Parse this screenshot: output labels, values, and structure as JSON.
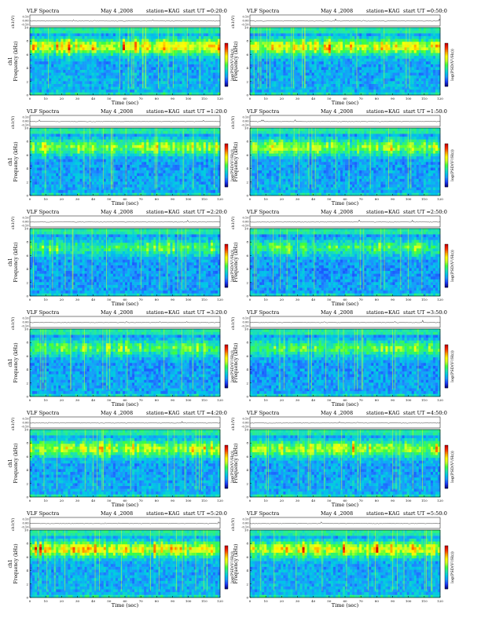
{
  "colors": {
    "colormap": [
      "#08088a",
      "#1a3cff",
      "#1e90ff",
      "#00c8e6",
      "#22e6aa",
      "#3cff3c",
      "#c8ff28",
      "#ffff00",
      "#ffa000",
      "#ff3000",
      "#c80000"
    ],
    "background": "#ffffff",
    "axis": "#000000"
  },
  "chart_data": [
    {
      "type": "heatmap",
      "title_left": "VLF Spectra",
      "title_date": "May 4 ,2008",
      "title_station": "station=KAG",
      "title_start": "start UT =0:20:0",
      "ch_label": "ch1(V)",
      "ch_ticks": [
        "0.10",
        "0.00",
        "-0.10"
      ],
      "ylabel": "Frequency (kHz)",
      "ylabel_ch": "ch1",
      "yticks": [
        "0",
        "2",
        "4",
        "6",
        "8",
        "10"
      ],
      "ylim": [
        0,
        10
      ],
      "xlabel": "Time (sec)",
      "xticks": [
        "0",
        "10",
        "20",
        "30",
        "40",
        "50",
        "60",
        "70",
        "80",
        "90",
        "100",
        "110",
        "120"
      ],
      "xlim": [
        0,
        120
      ],
      "colorbar_label": "log(PSD(V²/Hz))",
      "intensity": 1.0,
      "seed": 11
    },
    {
      "type": "heatmap",
      "title_left": "VLF Spectra",
      "title_date": "May 4 ,2008",
      "title_station": "station=KAG",
      "title_start": "start UT =0:50:0",
      "ch_label": "ch1(V)",
      "ch_ticks": [
        "0.10",
        "0.00",
        "-0.10"
      ],
      "ylabel": "Frequency (kHz)",
      "ylabel_ch": "",
      "yticks": [
        "0",
        "2",
        "4",
        "6",
        "8",
        "10"
      ],
      "ylim": [
        0,
        10
      ],
      "xlabel": "Time (sec)",
      "xticks": [
        "0",
        "10",
        "20",
        "30",
        "40",
        "50",
        "60",
        "70",
        "80",
        "90",
        "100",
        "110",
        "120"
      ],
      "xlim": [
        0,
        120
      ],
      "colorbar_label": "log(PSD(V²/Hz))",
      "intensity": 1.0,
      "seed": 23
    },
    {
      "type": "heatmap",
      "title_left": "VLF Spectra",
      "title_date": "May 4 ,2008",
      "title_station": "station=KAG",
      "title_start": "start UT =1:20:0",
      "ch_label": "ch1(V)",
      "ch_ticks": [
        "0.10",
        "0.00",
        "-0.10"
      ],
      "ylabel": "Frequency (kHz)",
      "ylabel_ch": "ch1",
      "yticks": [
        "0",
        "2",
        "4",
        "6",
        "8",
        "10"
      ],
      "ylim": [
        0,
        10
      ],
      "xlabel": "Time (sec)",
      "xticks": [
        "0",
        "10",
        "20",
        "30",
        "40",
        "50",
        "60",
        "70",
        "80",
        "90",
        "100",
        "110",
        "120"
      ],
      "xlim": [
        0,
        120
      ],
      "colorbar_label": "log(PSD(V²/Hz))",
      "intensity": 0.78,
      "seed": 37
    },
    {
      "type": "heatmap",
      "title_left": "VLF Spectra",
      "title_date": "May 4 ,2008",
      "title_station": "station=KAG",
      "title_start": "start UT =1:50:0",
      "ch_label": "ch1(V)",
      "ch_ticks": [
        "0.10",
        "0.00",
        "-0.10"
      ],
      "ylabel": "Frequency (kHz)",
      "ylabel_ch": "",
      "yticks": [
        "0",
        "2",
        "4",
        "6",
        "8",
        "10"
      ],
      "ylim": [
        0,
        10
      ],
      "xlabel": "Time (sec)",
      "xticks": [
        "0",
        "10",
        "20",
        "30",
        "40",
        "50",
        "60",
        "70",
        "80",
        "90",
        "100",
        "110",
        "120"
      ],
      "xlim": [
        0,
        120
      ],
      "colorbar_label": "log(PSD(V²/Hz))",
      "intensity": 0.78,
      "seed": 41
    },
    {
      "type": "heatmap",
      "title_left": "VLF Spectra",
      "title_date": "May 4 ,2008",
      "title_station": "station=KAG",
      "title_start": "start UT =2:20:0",
      "ch_label": "ch1(V)",
      "ch_ticks": [
        "0.10",
        "0.00",
        "-0.10"
      ],
      "ylabel": "Frequency (kHz)",
      "ylabel_ch": "ch1",
      "yticks": [
        "0",
        "2",
        "4",
        "6",
        "8",
        "10"
      ],
      "ylim": [
        0,
        10
      ],
      "xlabel": "Time (sec)",
      "xticks": [
        "0",
        "10",
        "20",
        "30",
        "40",
        "50",
        "60",
        "70",
        "80",
        "90",
        "100",
        "110",
        "120"
      ],
      "xlim": [
        0,
        120
      ],
      "colorbar_label": "log(PSD(V²/Hz))",
      "intensity": 0.55,
      "seed": 53
    },
    {
      "type": "heatmap",
      "title_left": "VLF Spectra",
      "title_date": "May 4 ,2008",
      "title_station": "station=KAG",
      "title_start": "start UT =2:50:0",
      "ch_label": "ch1(V)",
      "ch_ticks": [
        "0.10",
        "0.00",
        "-0.10"
      ],
      "ylabel": "Frequency (kHz)",
      "ylabel_ch": "",
      "yticks": [
        "0",
        "2",
        "4",
        "6",
        "8",
        "10"
      ],
      "ylim": [
        0,
        10
      ],
      "xlabel": "Time (sec)",
      "xticks": [
        "0",
        "10",
        "20",
        "30",
        "40",
        "50",
        "60",
        "70",
        "80",
        "90",
        "100",
        "110",
        "120"
      ],
      "xlim": [
        0,
        120
      ],
      "colorbar_label": "log(PSD(V²/Hz))",
      "intensity": 0.55,
      "seed": 67
    },
    {
      "type": "heatmap",
      "title_left": "VLF Spectra",
      "title_date": "May 4 ,2008",
      "title_station": "station=KAG",
      "title_start": "start UT =3:20:0",
      "ch_label": "ch1(V)",
      "ch_ticks": [
        "0.10",
        "0.00",
        "-0.10"
      ],
      "ylabel": "Frequency (kHz)",
      "ylabel_ch": "ch1",
      "yticks": [
        "0",
        "2",
        "4",
        "6",
        "8",
        "10"
      ],
      "ylim": [
        0,
        10
      ],
      "xlabel": "Time (sec)",
      "xticks": [
        "0",
        "10",
        "20",
        "30",
        "40",
        "50",
        "60",
        "70",
        "80",
        "90",
        "100",
        "110",
        "120"
      ],
      "xlim": [
        0,
        120
      ],
      "colorbar_label": "log(PSD(V²/Hz))",
      "intensity": 0.6,
      "seed": 71
    },
    {
      "type": "heatmap",
      "title_left": "VLF Spectra",
      "title_date": "May 4 ,2008",
      "title_station": "station=KAG",
      "title_start": "start UT =3:50:0",
      "ch_label": "ch1(V)",
      "ch_ticks": [
        "0.10",
        "0.00",
        "-0.10"
      ],
      "ylabel": "Frequency (kHz)",
      "ylabel_ch": "",
      "yticks": [
        "0",
        "2",
        "4",
        "6",
        "8",
        "10"
      ],
      "ylim": [
        0,
        10
      ],
      "xlabel": "Time (sec)",
      "xticks": [
        "0",
        "10",
        "20",
        "30",
        "40",
        "50",
        "60",
        "70",
        "80",
        "90",
        "100",
        "110",
        "120"
      ],
      "xlim": [
        0,
        120
      ],
      "colorbar_label": "log(PSD(V²/Hz))",
      "intensity": 0.6,
      "seed": 83
    },
    {
      "type": "heatmap",
      "title_left": "VLF Spectra",
      "title_date": "May 4 ,2008",
      "title_station": "station=KAG",
      "title_start": "start UT =4:20:0",
      "ch_label": "ch1(V)",
      "ch_ticks": [
        "0.10",
        "0.00",
        "-0.10"
      ],
      "ylabel": "Frequency (kHz)",
      "ylabel_ch": "ch1",
      "yticks": [
        "0",
        "2",
        "4",
        "6",
        "8",
        "10"
      ],
      "ylim": [
        0,
        10
      ],
      "xlabel": "Time (sec)",
      "xticks": [
        "0",
        "10",
        "20",
        "30",
        "40",
        "50",
        "60",
        "70",
        "80",
        "90",
        "100",
        "110",
        "120"
      ],
      "xlim": [
        0,
        120
      ],
      "colorbar_label": "log(PSD(V²/Hz))",
      "intensity": 0.82,
      "seed": 97
    },
    {
      "type": "heatmap",
      "title_left": "VLF Spectra",
      "title_date": "May 4 ,2008",
      "title_station": "station=KAG",
      "title_start": "start UT =4:50:0",
      "ch_label": "ch1(V)",
      "ch_ticks": [
        "0.10",
        "0.00",
        "-0.10"
      ],
      "ylabel": "Frequency (kHz)",
      "ylabel_ch": "",
      "yticks": [
        "0",
        "2",
        "4",
        "6",
        "8",
        "10"
      ],
      "ylim": [
        0,
        10
      ],
      "xlabel": "Time (sec)",
      "xticks": [
        "0",
        "10",
        "20",
        "30",
        "40",
        "50",
        "60",
        "70",
        "80",
        "90",
        "100",
        "110",
        "120"
      ],
      "xlim": [
        0,
        120
      ],
      "colorbar_label": "log(PSD(V²/Hz))",
      "intensity": 0.82,
      "seed": 101
    },
    {
      "type": "heatmap",
      "title_left": "VLF Spectra",
      "title_date": "May 4 ,2008",
      "title_station": "station=KAG",
      "title_start": "start UT =5:20:0",
      "ch_label": "ch1(V)",
      "ch_ticks": [
        "0.10",
        "0.00",
        "-0.10"
      ],
      "ylabel": "Frequency (kHz)",
      "ylabel_ch": "ch1",
      "yticks": [
        "0",
        "2",
        "4",
        "6",
        "8",
        "10"
      ],
      "ylim": [
        0,
        10
      ],
      "xlabel": "Time (sec)",
      "xticks": [
        "0",
        "10",
        "20",
        "30",
        "40",
        "50",
        "60",
        "70",
        "80",
        "90",
        "100",
        "110",
        "120"
      ],
      "xlim": [
        0,
        120
      ],
      "colorbar_label": "log(PSD(V²/Hz))",
      "intensity": 1.0,
      "seed": 113
    },
    {
      "type": "heatmap",
      "title_left": "VLF Spectra",
      "title_date": "May 4 ,2008",
      "title_station": "station=KAG",
      "title_start": "start UT =5:50:0",
      "ch_label": "ch1(V)",
      "ch_ticks": [
        "0.10",
        "0.00",
        "-0.10"
      ],
      "ylabel": "Frequency (kHz)",
      "ylabel_ch": "",
      "yticks": [
        "0",
        "2",
        "4",
        "6",
        "8",
        "10"
      ],
      "ylim": [
        0,
        10
      ],
      "xlabel": "Time (sec)",
      "xticks": [
        "0",
        "10",
        "20",
        "30",
        "40",
        "50",
        "60",
        "70",
        "80",
        "90",
        "100",
        "110",
        "120"
      ],
      "xlim": [
        0,
        120
      ],
      "colorbar_label": "log(PSD(V²/Hz))",
      "intensity": 1.0,
      "seed": 127
    }
  ]
}
